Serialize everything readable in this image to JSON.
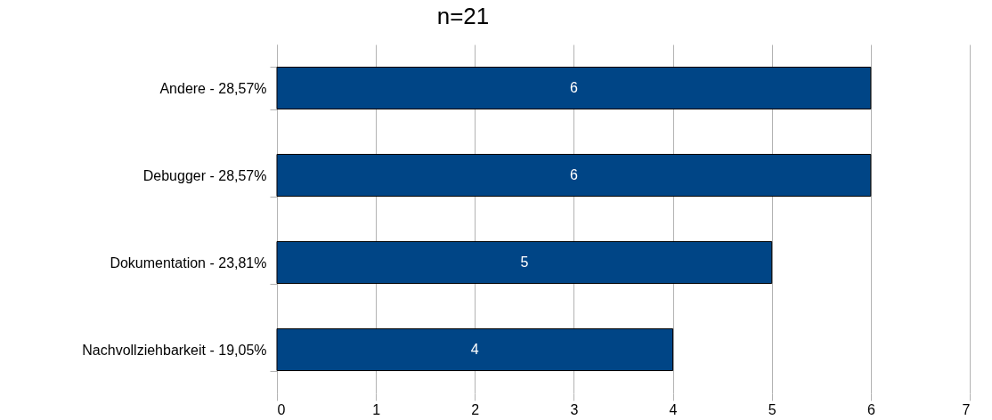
{
  "chart_data": {
    "type": "bar",
    "title": "n=21",
    "orientation": "horizontal",
    "categories": [
      "Andere - 28,57%",
      "Debugger - 28,57%",
      "Dokumentation - 23,81%",
      "Nachvollziehbarkeit - 19,05%"
    ],
    "values": [
      6,
      6,
      5,
      4
    ],
    "color": "#004586",
    "xlim": [
      0,
      7
    ],
    "xticks": [
      0,
      1,
      2,
      3,
      4,
      5,
      6,
      7
    ],
    "grid": "x",
    "data_labels": true
  }
}
